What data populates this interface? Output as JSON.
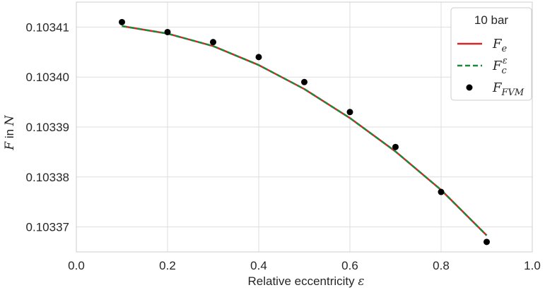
{
  "chart_data": {
    "type": "line",
    "xlabel_text": "Relative eccentricity ",
    "xlabel_symbol": "ε",
    "ylabel_symbol": "F",
    "ylabel_text": " in ",
    "ylabel_unit": "N",
    "xlim": [
      0.0,
      1.0
    ],
    "ylim": [
      0.103365,
      0.103415
    ],
    "grid": true,
    "x_ticks": [
      0.0,
      0.2,
      0.4,
      0.6,
      0.8,
      1.0
    ],
    "x_tick_labels": [
      "0.0",
      "0.2",
      "0.4",
      "0.6",
      "0.8",
      "1.0"
    ],
    "y_ticks": [
      0.10337,
      0.10338,
      0.10339,
      0.1034,
      0.10341
    ],
    "y_tick_labels": [
      "0.10337",
      "0.10338",
      "0.10339",
      "0.10340",
      "0.10341"
    ],
    "legend": {
      "title": "10 bar",
      "placement": "top-right",
      "entries": [
        {
          "base": "F",
          "sub": "e",
          "sup": ""
        },
        {
          "base": "F",
          "sub": "c",
          "sup": "ε"
        },
        {
          "base": "F",
          "sub": "FVM",
          "sup": ""
        }
      ]
    },
    "series": [
      {
        "name": "Fe",
        "style": "solid-line",
        "color": "#d62728",
        "x": [
          0.1,
          0.2,
          0.3,
          0.4,
          0.5,
          0.6,
          0.7,
          0.8,
          0.9
        ],
        "y": [
          0.1034102,
          0.1034087,
          0.1034062,
          0.1034024,
          0.1033976,
          0.1033918,
          0.1033851,
          0.1033774,
          0.1033683
        ]
      },
      {
        "name": "Fc^ε",
        "style": "dashed-line",
        "color": "#1a8a3a",
        "x": [
          0.1,
          0.2,
          0.3,
          0.4,
          0.5,
          0.6,
          0.7,
          0.8,
          0.9
        ],
        "y": [
          0.1034102,
          0.1034087,
          0.1034062,
          0.1034024,
          0.1033976,
          0.1033918,
          0.1033851,
          0.1033774,
          0.1033683
        ]
      },
      {
        "name": "FFVM",
        "style": "markers",
        "color": "#000000",
        "x": [
          0.1,
          0.2,
          0.3,
          0.4,
          0.5,
          0.6,
          0.7,
          0.8,
          0.9
        ],
        "y": [
          0.103411,
          0.103409,
          0.103407,
          0.103404,
          0.103399,
          0.103393,
          0.103386,
          0.103377,
          0.103367
        ]
      }
    ]
  }
}
